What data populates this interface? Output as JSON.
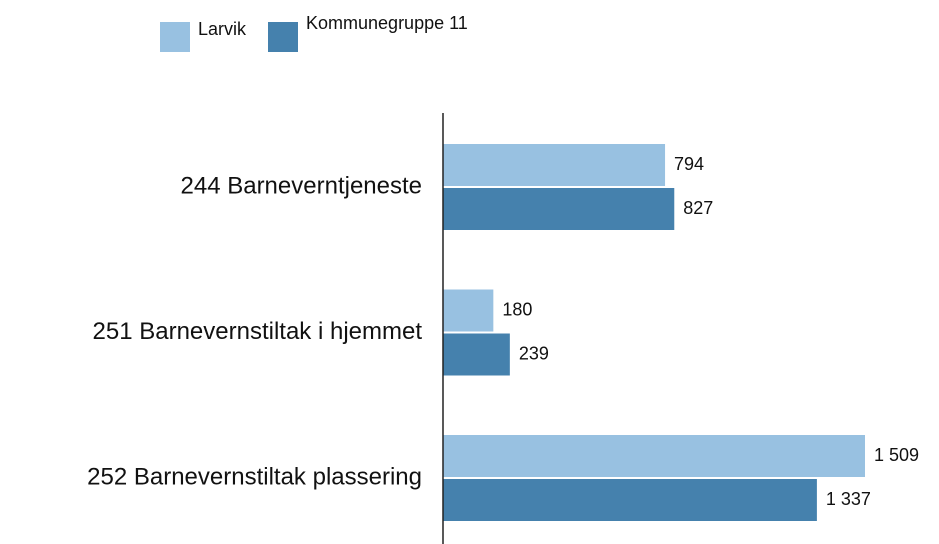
{
  "chart_data": {
    "type": "bar",
    "orientation": "horizontal",
    "categories": [
      "244 Barneverntjeneste",
      "251 Barnevernstiltak i hjemmet",
      "252 Barnevernstiltak plassering"
    ],
    "series": [
      {
        "name": "Larvik",
        "color": "#98c1e1",
        "values": [
          794,
          180,
          1509
        ],
        "value_labels": [
          "794",
          "180",
          "1 509"
        ]
      },
      {
        "name": "Kommunegruppe 11",
        "color": "#4581ad",
        "values": [
          827,
          239,
          1337
        ],
        "value_labels": [
          "827",
          "239",
          "1 337"
        ]
      }
    ]
  }
}
